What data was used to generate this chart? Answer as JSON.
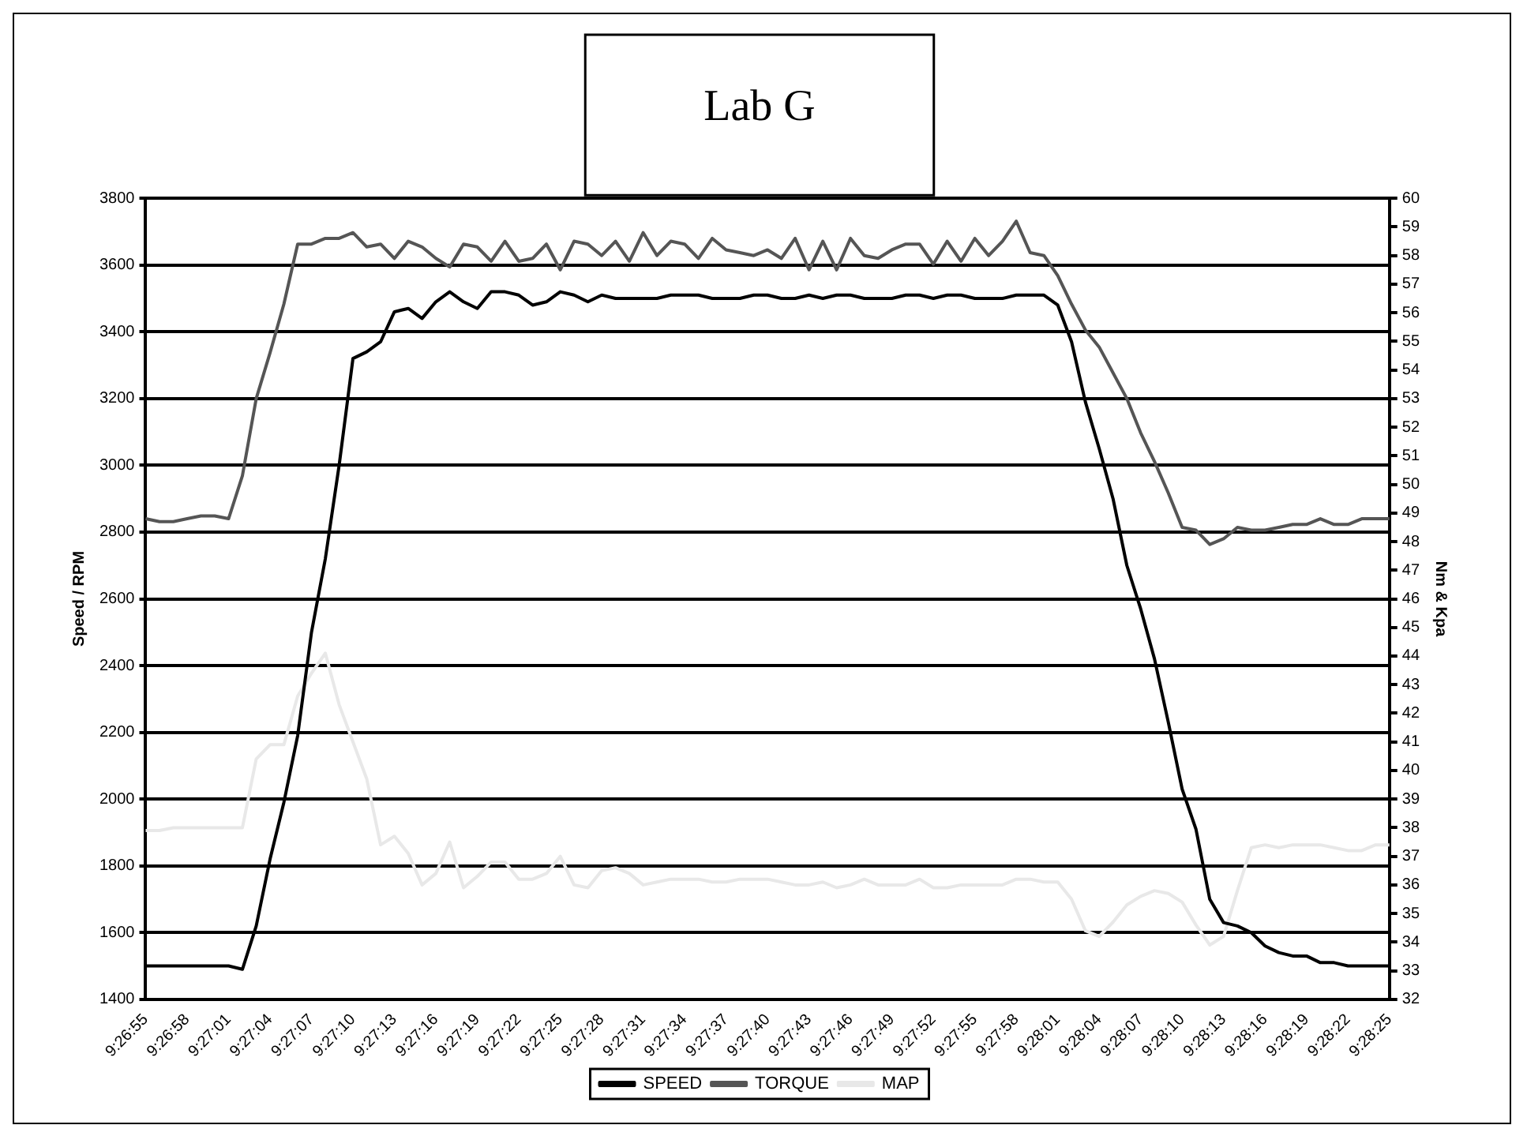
{
  "chart_data": {
    "type": "line",
    "title": "Lab G",
    "ylabel": "Speed / RPM",
    "y2label": "Nm & Kpa",
    "categories": [
      "9:26:55",
      null,
      null,
      "9:26:58",
      null,
      null,
      "9:27:01",
      null,
      null,
      "9:27:04",
      null,
      null,
      "9:27:07",
      null,
      null,
      "9:27:10",
      null,
      null,
      "9:27:13",
      null,
      null,
      "9:27:16",
      null,
      null,
      "9:27:19",
      null,
      null,
      "9:27:22",
      null,
      null,
      "9:27:25",
      null,
      null,
      "9:27:28",
      null,
      null,
      "9:27:31",
      null,
      null,
      "9:27:34",
      null,
      null,
      "9:27:37",
      null,
      null,
      "9:27:40",
      null,
      null,
      "9:27:43",
      null,
      null,
      "9:27:46",
      null,
      null,
      "9:27:49",
      null,
      null,
      "9:27:52",
      null,
      null,
      "9:27:55",
      null,
      null,
      "9:27:58",
      null,
      null,
      "9:28:01",
      null,
      null,
      "9:28:04",
      null,
      null,
      "9:28:07",
      null,
      null,
      "9:28:10",
      null,
      null,
      "9:28:13",
      null,
      null,
      "9:28:16",
      null,
      null,
      "9:28:19",
      null,
      null,
      "9:28:22",
      null,
      null,
      "9:28:25"
    ],
    "series": [
      {
        "name": "SPEED",
        "color": "#000000",
        "values": [
          1500,
          1500,
          1500,
          1500,
          1500,
          1500,
          1500,
          1490,
          1620,
          1820,
          1990,
          2190,
          2500,
          2720,
          3000,
          3320,
          3340,
          3370,
          3460,
          3470,
          3440,
          3490,
          3520,
          3490,
          3470,
          3520,
          3520,
          3510,
          3480,
          3490,
          3520,
          3510,
          3490,
          3510,
          3500,
          3500,
          3500,
          3500,
          3510,
          3510,
          3510,
          3500,
          3500,
          3500,
          3510,
          3510,
          3500,
          3500,
          3510,
          3500,
          3510,
          3510,
          3500,
          3500,
          3500,
          3510,
          3510,
          3500,
          3510,
          3510,
          3500,
          3500,
          3500,
          3510,
          3510,
          3510,
          3480,
          3370,
          3190,
          3050,
          2900,
          2700,
          2570,
          2420,
          2230,
          2030,
          1910,
          1700,
          1630,
          1620,
          1600,
          1560,
          1540,
          1530,
          1530,
          1510,
          1510,
          1500,
          1500,
          1500,
          1500
        ]
      },
      {
        "name": "TORQUE",
        "color": "#555555",
        "axis": "y2",
        "values": [
          48.8,
          48.7,
          48.7,
          48.8,
          48.9,
          48.9,
          48.8,
          50.3,
          53.0,
          54.6,
          56.3,
          58.4,
          58.4,
          58.6,
          58.6,
          58.8,
          58.3,
          58.4,
          57.9,
          58.5,
          58.3,
          57.9,
          57.6,
          58.4,
          58.3,
          57.8,
          58.5,
          57.8,
          57.9,
          58.4,
          57.5,
          58.5,
          58.4,
          58.0,
          58.5,
          57.8,
          58.8,
          58.0,
          58.5,
          58.4,
          57.9,
          58.6,
          58.2,
          58.1,
          58.0,
          58.2,
          57.9,
          58.6,
          57.5,
          58.5,
          57.5,
          58.6,
          58.0,
          57.9,
          58.2,
          58.4,
          58.4,
          57.7,
          58.5,
          57.8,
          58.6,
          58.0,
          58.5,
          59.2,
          58.1,
          58.0,
          57.3,
          56.3,
          55.4,
          54.8,
          53.9,
          53.0,
          51.8,
          50.8,
          49.7,
          48.5,
          48.4,
          47.9,
          48.1,
          48.5,
          48.4,
          48.4,
          48.5,
          48.6,
          48.6,
          48.8,
          48.6,
          48.6,
          48.8,
          48.8,
          48.8
        ]
      },
      {
        "name": "MAP",
        "color": "#e8e8e8",
        "axis": "y2",
        "values": [
          37.9,
          37.9,
          38.0,
          38.0,
          38.0,
          38.0,
          38.0,
          38.0,
          40.4,
          40.9,
          40.9,
          42.6,
          43.4,
          44.1,
          42.3,
          41.0,
          39.7,
          37.4,
          37.7,
          37.1,
          36.0,
          36.4,
          37.5,
          35.9,
          36.3,
          36.8,
          36.8,
          36.2,
          36.2,
          36.4,
          37.0,
          36.0,
          35.9,
          36.5,
          36.6,
          36.4,
          36.0,
          36.1,
          36.2,
          36.2,
          36.2,
          36.1,
          36.1,
          36.2,
          36.2,
          36.2,
          36.1,
          36.0,
          36.0,
          36.1,
          35.9,
          36.0,
          36.2,
          36.0,
          36.0,
          36.0,
          36.2,
          35.9,
          35.9,
          36.0,
          36.0,
          36.0,
          36.0,
          36.2,
          36.2,
          36.1,
          36.1,
          35.5,
          34.4,
          34.2,
          34.7,
          35.3,
          35.6,
          35.8,
          35.7,
          35.4,
          34.6,
          33.9,
          34.2,
          35.8,
          37.3,
          37.4,
          37.3,
          37.4,
          37.4,
          37.4,
          37.3,
          37.2,
          37.2,
          37.4,
          37.4
        ]
      }
    ],
    "ylim": [
      1400,
      3800
    ],
    "yticks": [
      1400,
      1600,
      1800,
      2000,
      2200,
      2400,
      2600,
      2800,
      3000,
      3200,
      3400,
      3600,
      3800
    ],
    "y2lim": [
      32,
      60
    ],
    "y2ticks": [
      32,
      33,
      34,
      35,
      36,
      37,
      38,
      39,
      40,
      41,
      42,
      43,
      44,
      45,
      46,
      47,
      48,
      49,
      50,
      51,
      52,
      53,
      54,
      55,
      56,
      57,
      58,
      59,
      60
    ],
    "grid": "y",
    "legend": "bottom",
    "marker": "none",
    "line_style": "solid"
  }
}
